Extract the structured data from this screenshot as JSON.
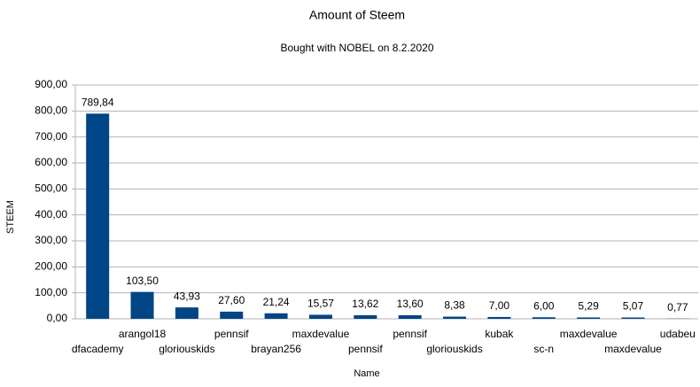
{
  "chart_data": {
    "type": "bar",
    "title": "Amount of Steem",
    "subtitle": "Bought with NOBEL on 8.2.2020",
    "x_label": "Name",
    "y_label": "STEEM",
    "categories": [
      "dfacademy",
      "arangol18",
      "gloriouskids",
      "pennsif",
      "brayan256",
      "maxdevalue",
      "pennsif",
      "pennsif",
      "gloriouskids",
      "kubak",
      "sc-n",
      "maxdevalue",
      "maxdevalue",
      "udabeu"
    ],
    "values": [
      789.84,
      103.5,
      43.93,
      27.6,
      21.24,
      15.57,
      13.62,
      13.6,
      8.38,
      7.0,
      6.0,
      5.29,
      5.07,
      0.77
    ],
    "value_labels": [
      "789,84",
      "103,50",
      "43,93",
      "27,60",
      "21,24",
      "15,57",
      "13,62",
      "13,60",
      "8,38",
      "7,00",
      "6,00",
      "5,29",
      "5,07",
      "0,77"
    ],
    "color": "#004586",
    "ylim": [
      0,
      900
    ],
    "yticks": [
      {
        "value": 0,
        "label": "0,00"
      },
      {
        "value": 100,
        "label": "100,00"
      },
      {
        "value": 200,
        "label": "200,00"
      },
      {
        "value": 300,
        "label": "300,00"
      },
      {
        "value": 400,
        "label": "400,00"
      },
      {
        "value": 500,
        "label": "500,00"
      },
      {
        "value": 600,
        "label": "600,00"
      },
      {
        "value": 700,
        "label": "700,00"
      },
      {
        "value": 800,
        "label": "800,00"
      },
      {
        "value": 900,
        "label": "900,00"
      }
    ],
    "grid": true
  }
}
